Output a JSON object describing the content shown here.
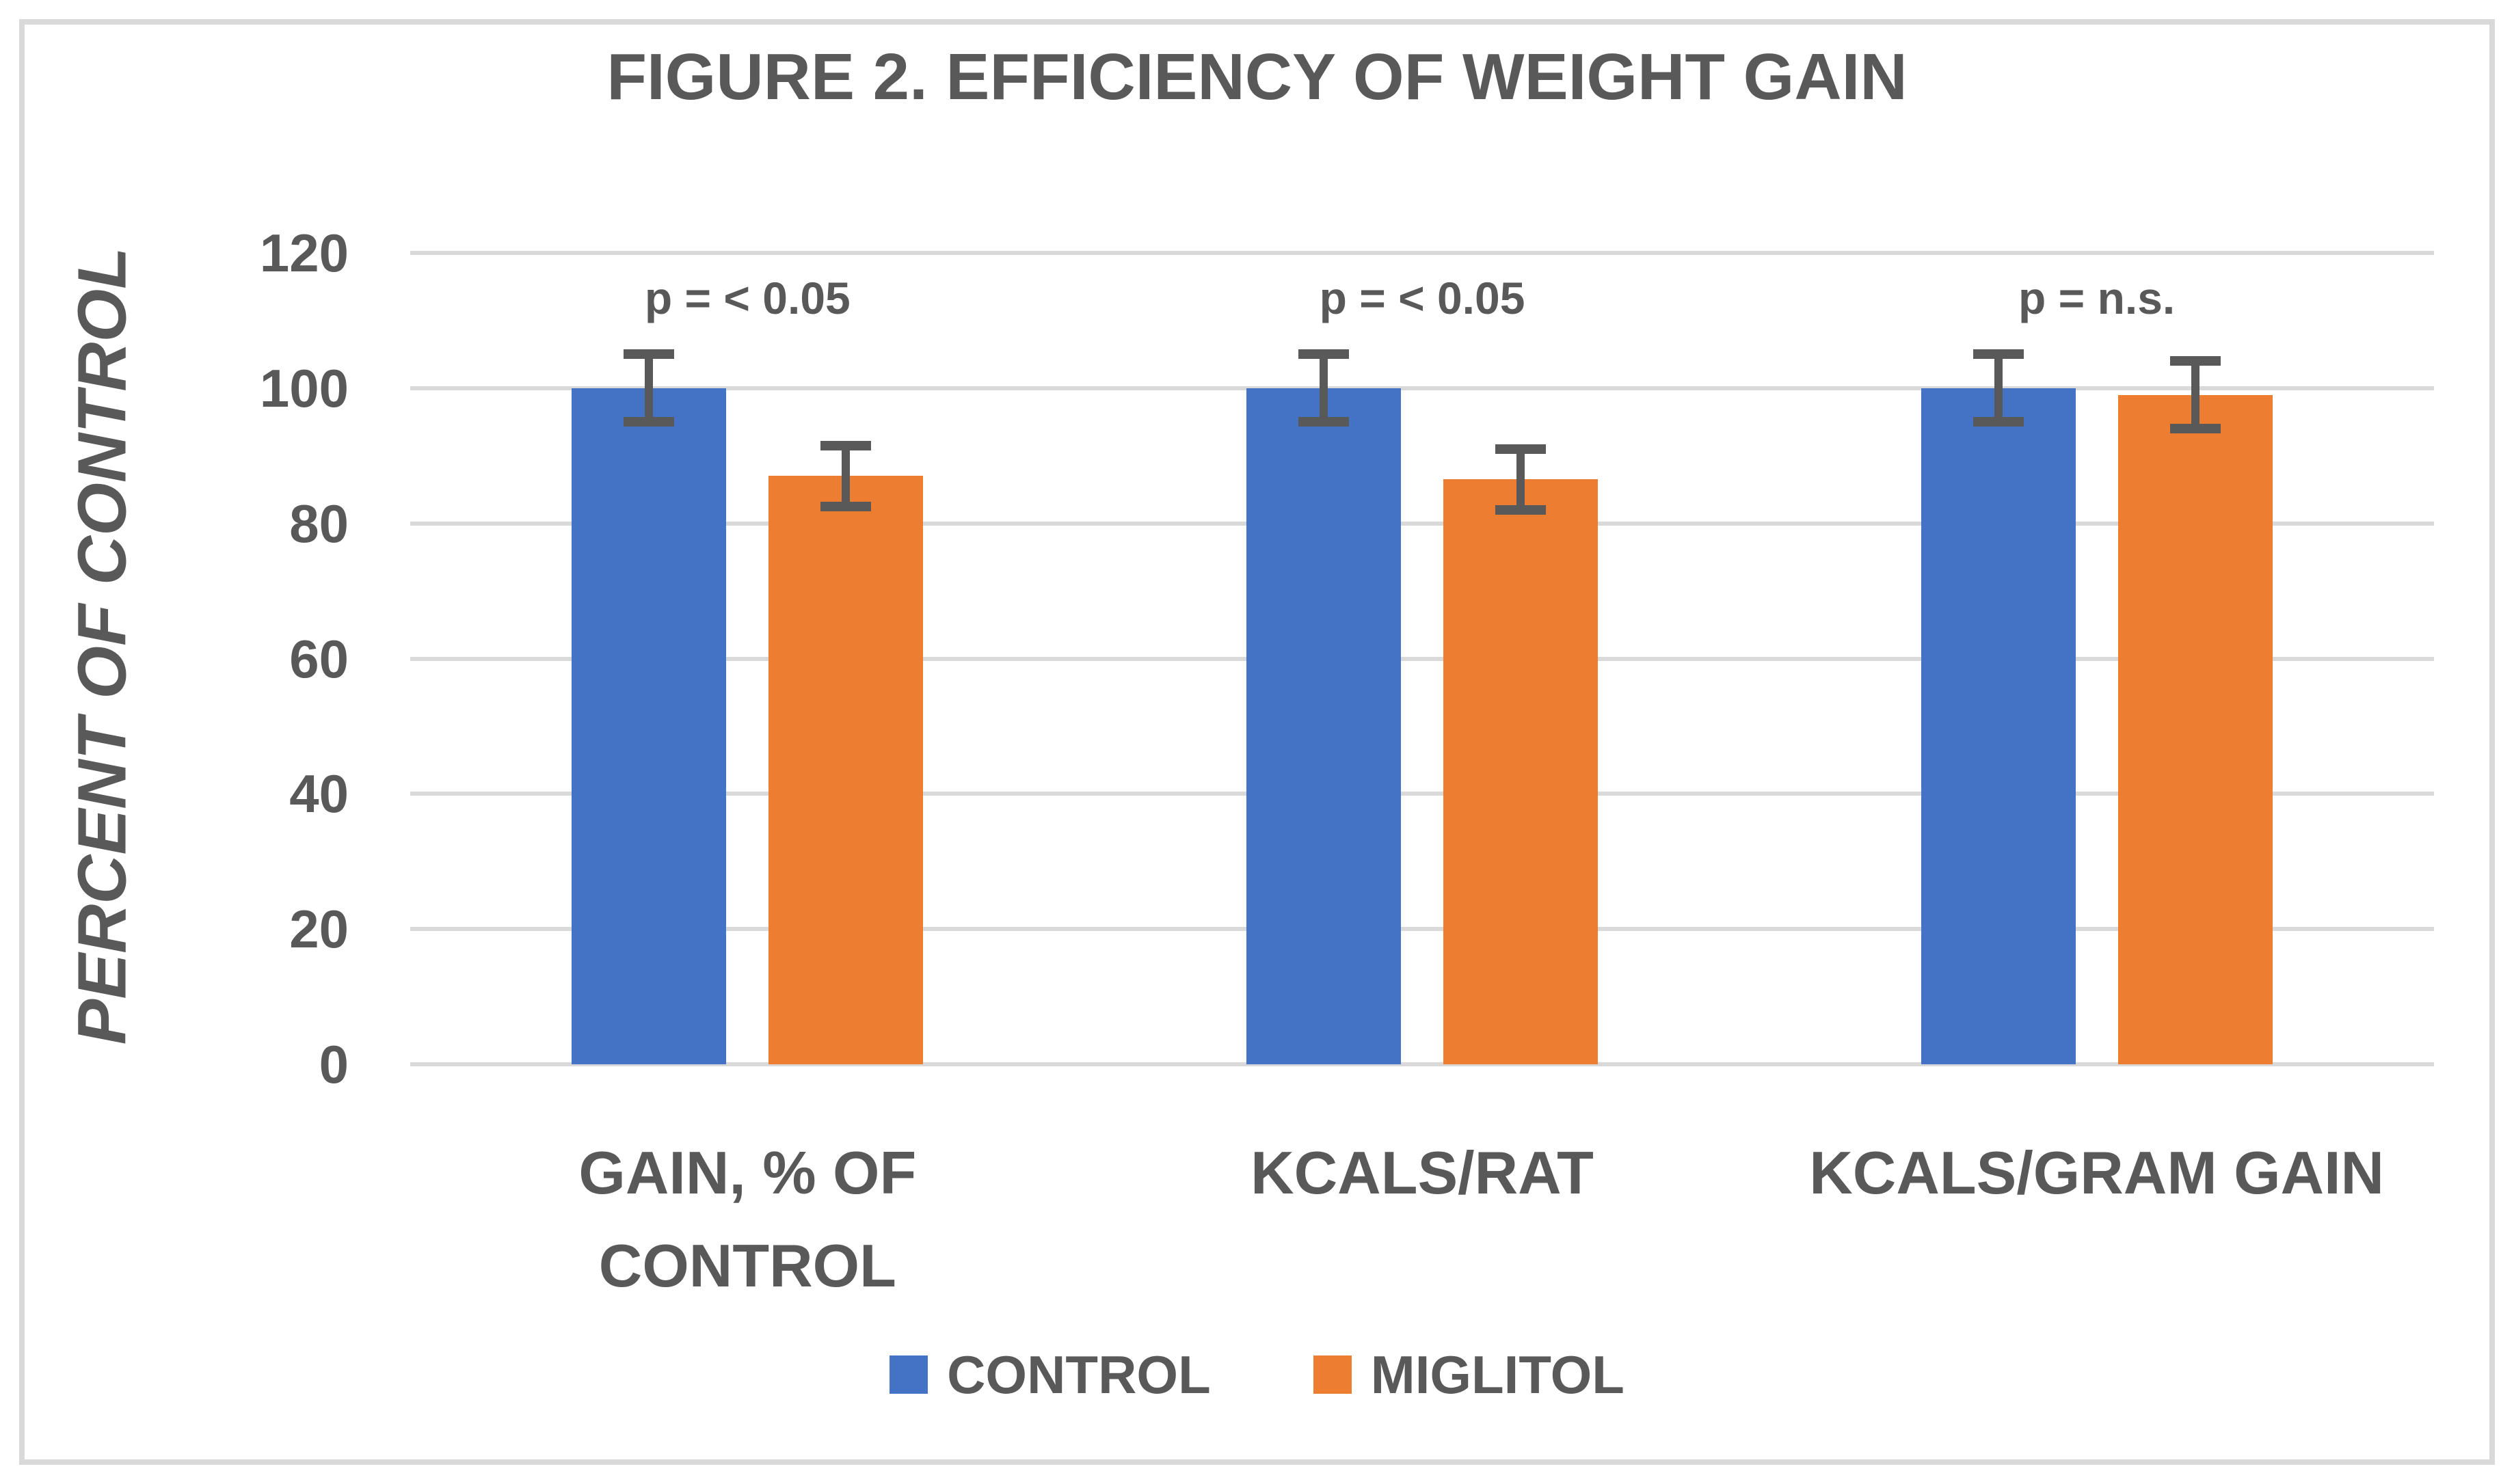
{
  "chart_data": {
    "type": "bar",
    "title": "FIGURE 2. EFFICIENCY OF WEIGHT GAIN",
    "ylabel": "PERCENT OF CONTROL",
    "xlabel": "",
    "categories": [
      "GAIN, % OF CONTROL",
      "KCALS/RAT",
      "KCALS/GRAM GAIN"
    ],
    "series": [
      {
        "name": "CONTROL",
        "color": "#4472C4",
        "values": [
          100,
          100,
          100
        ],
        "errors": [
          5,
          5,
          5
        ]
      },
      {
        "name": "MIGLITOL",
        "color": "#ED7D31",
        "values": [
          87,
          86.5,
          99
        ],
        "errors": [
          4.5,
          4.5,
          5
        ]
      }
    ],
    "annotations": [
      "p = < 0.05",
      "p = < 0.05",
      "p = n.s."
    ],
    "ylim": [
      0,
      120
    ],
    "yticks": [
      0,
      20,
      40,
      60,
      80,
      100,
      120
    ],
    "grid": true,
    "legend_position": "bottom",
    "colors": {
      "grid": "#D9D9D9",
      "text": "#595959",
      "error_bar": "#595959",
      "frame_border": "#D9D9D9",
      "background": "#FFFFFF"
    }
  }
}
